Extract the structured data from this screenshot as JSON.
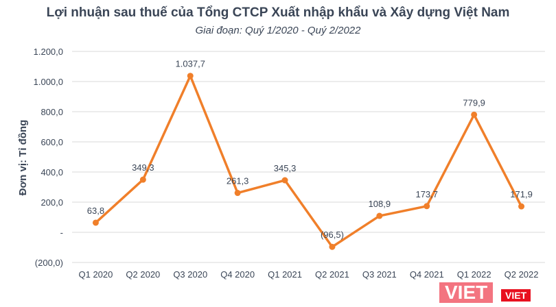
{
  "chart_data": {
    "type": "line",
    "title": "Lợi nhuận sau thuế của Tổng CTCP Xuất nhập khẩu và Xây dựng Việt Nam",
    "subtitle": "Giai đoạn: Quý 1/2020 - Quý 2/2022",
    "xlabel": "",
    "ylabel": "Đơn vị: Tỉ đồng",
    "categories": [
      "Q1 2020",
      "Q2 2020",
      "Q3 2020",
      "Q4 2020",
      "Q1 2021",
      "Q2 2021",
      "Q3 2021",
      "Q4 2021",
      "Q1 2022",
      "Q2 2022"
    ],
    "values": [
      63.8,
      349.3,
      1037.7,
      261.3,
      345.3,
      -96.5,
      108.9,
      173.7,
      779.9,
      171.9
    ],
    "data_labels": [
      "63,8",
      "349,3",
      "1.037,7",
      "261,3",
      "345,3",
      "(96,5)",
      "108,9",
      "173,7",
      "779,9",
      "171,9"
    ],
    "ylim": [
      -200,
      1200
    ],
    "yticks": [
      -200,
      0,
      200,
      400,
      600,
      800,
      1000,
      1200
    ],
    "ytick_labels": [
      "(200,0)",
      "-",
      "200,0",
      "400,0",
      "600,0",
      "800,0",
      "1.000,0",
      "1.200,0"
    ],
    "grid": true,
    "line_color": "#f07f2a"
  },
  "logo": {
    "text": "VIET",
    "small_text": "VIET"
  }
}
